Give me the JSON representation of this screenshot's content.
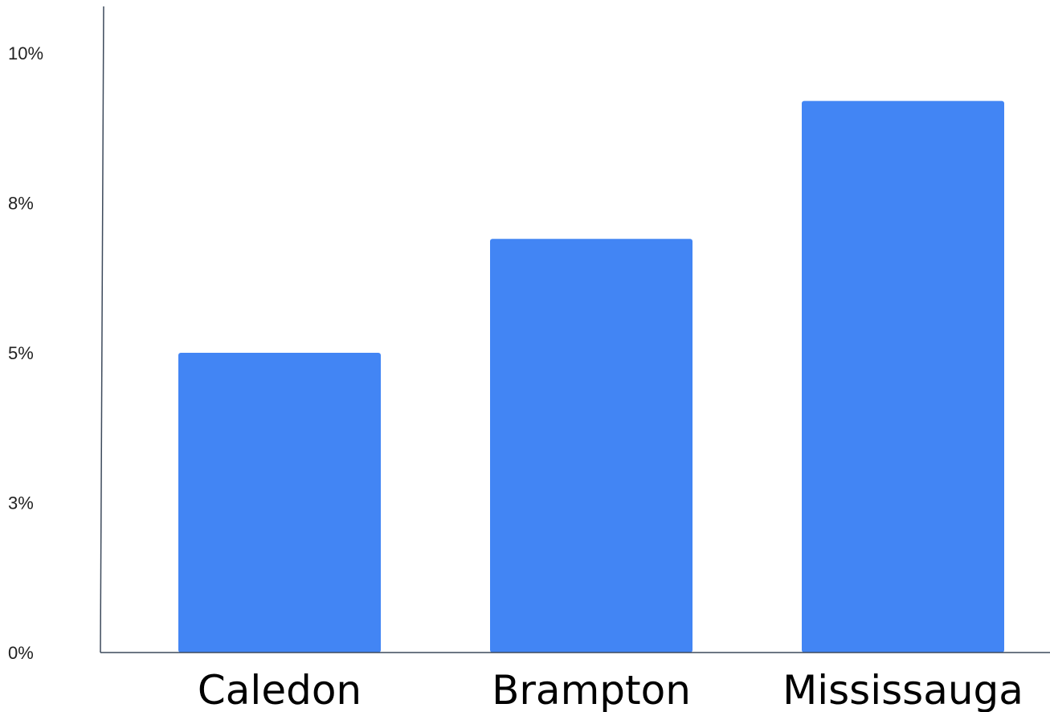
{
  "chart_data": {
    "type": "bar",
    "title": "",
    "xlabel": "",
    "ylabel": "",
    "categories": [
      "Caledon",
      "Brampton",
      "Mississauga"
    ],
    "values": [
      5.0,
      6.9,
      9.2
    ],
    "ylim": [
      0,
      10.9
    ],
    "y_ticks": [
      {
        "value": 0,
        "label": "0%"
      },
      {
        "value": 2.5,
        "label": "3%"
      },
      {
        "value": 5.0,
        "label": "5%"
      },
      {
        "value": 7.5,
        "label": "8%"
      },
      {
        "value": 10.0,
        "label": "10%"
      }
    ],
    "grid": false,
    "legend": "none",
    "bar_color": "#4285f4",
    "axis_color": "#3d4a5c"
  }
}
